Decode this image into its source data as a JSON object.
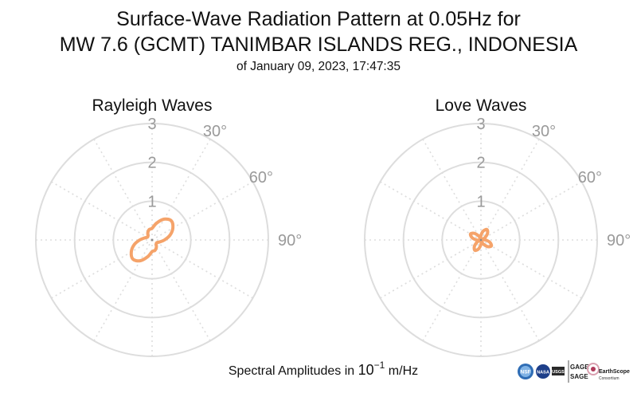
{
  "title_line1": "Surface-Wave Radiation Pattern at 0.05Hz for",
  "title_line2": "MW 7.6 (GCMT) TANIMBAR ISLANDS REG., INDONESIA",
  "subtitle": "of January 09, 2023, 17:47:35",
  "caption": {
    "prefix": "Spectral Amplitudes in ",
    "base": "10",
    "exponent": "−1",
    "unit": " m/Hz"
  },
  "colors": {
    "pattern": "#f5a36a",
    "grid": "#dddddd",
    "tick_text": "#9a9a9a"
  },
  "logos": {
    "nsf": "NSF",
    "nasa": "NASA",
    "usgs": "USGS",
    "gage": "GAGE",
    "sage": "SAGE",
    "earthscope": "EarthScope",
    "earthscope_sub": "Consortium"
  },
  "chart_data": [
    {
      "type": "polar-line",
      "title": "Rayleigh Waves",
      "rmax": 3,
      "radial_ticks": [
        "1",
        "2",
        "3"
      ],
      "radial_tick_values": [
        1,
        2,
        3
      ],
      "angular_ticks": [
        "30°",
        "60°",
        "90°"
      ],
      "angular_tick_values": [
        30,
        60,
        90
      ],
      "angular_grid_step_deg": 30,
      "theta_deg": [
        0,
        15,
        30,
        45,
        60,
        75,
        90,
        105,
        120,
        135,
        150,
        165,
        180,
        195,
        210,
        225,
        240,
        255,
        270,
        285,
        300,
        315,
        330,
        345
      ],
      "r": [
        0.3,
        0.45,
        0.62,
        0.7,
        0.62,
        0.48,
        0.32,
        0.2,
        0.14,
        0.15,
        0.22,
        0.28,
        0.3,
        0.45,
        0.62,
        0.7,
        0.62,
        0.48,
        0.32,
        0.2,
        0.14,
        0.15,
        0.22,
        0.28
      ]
    },
    {
      "type": "polar-line",
      "title": "Love Waves",
      "rmax": 3,
      "radial_ticks": [
        "1",
        "2",
        "3"
      ],
      "radial_tick_values": [
        1,
        2,
        3
      ],
      "angular_ticks": [
        "30°",
        "60°",
        "90°"
      ],
      "angular_tick_values": [
        30,
        60,
        90
      ],
      "angular_grid_step_deg": 30,
      "theta_deg": [
        0,
        15,
        30,
        45,
        60,
        75,
        90,
        105,
        120,
        135,
        150,
        165,
        180,
        195,
        210,
        225,
        240,
        255,
        270,
        285,
        300,
        315,
        330,
        345
      ],
      "r": [
        0.12,
        0.24,
        0.31,
        0.24,
        0.12,
        0.04,
        0.12,
        0.24,
        0.31,
        0.24,
        0.12,
        0.04,
        0.12,
        0.24,
        0.31,
        0.24,
        0.12,
        0.04,
        0.12,
        0.24,
        0.31,
        0.24,
        0.12,
        0.04
      ]
    }
  ]
}
